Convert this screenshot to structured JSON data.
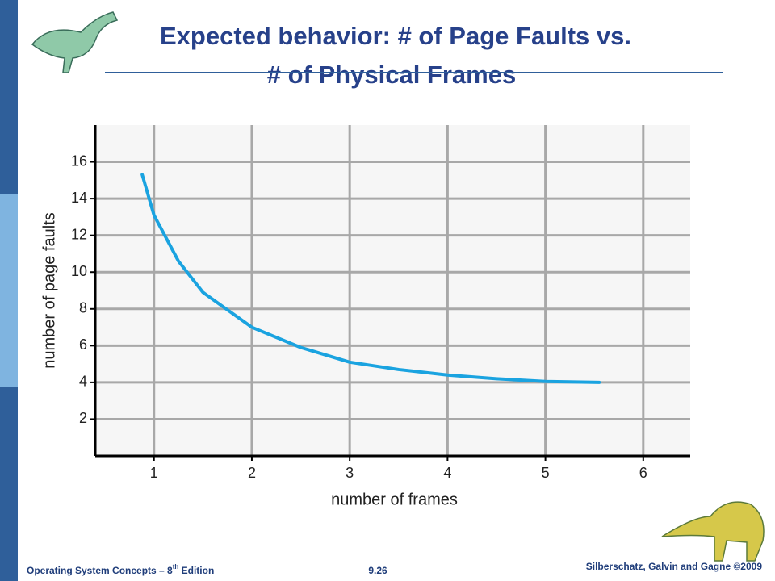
{
  "slide": {
    "title_lines": [
      "Expected behavior:  # of Page Faults vs.",
      "# of Physical Frames"
    ],
    "footer_left": [
      "Operating System Concepts – 8",
      "th",
      " Edition"
    ],
    "footer_center": "9.26",
    "footer_right": "Silberschatz, Galvin and Gagne ©2009"
  },
  "chart_data": {
    "type": "line",
    "xlabel": "number of frames",
    "ylabel": "number of page faults",
    "x": [
      0.88,
      1,
      1.25,
      1.5,
      2,
      2.5,
      3,
      3.5,
      4,
      4.5,
      5,
      5.55
    ],
    "series": [
      {
        "color": "#1aa3e0",
        "values": [
          15.3,
          13.1,
          10.6,
          8.9,
          7.0,
          5.9,
          5.1,
          4.7,
          4.4,
          4.2,
          4.05,
          4.0
        ]
      }
    ],
    "xlim": [
      0.4,
      6.48
    ],
    "xticks": [
      1,
      2,
      3,
      4,
      5,
      6
    ],
    "ylim": [
      0,
      18
    ],
    "yticks": [
      2,
      4,
      6,
      8,
      10,
      12,
      14,
      16
    ],
    "grid": true
  }
}
